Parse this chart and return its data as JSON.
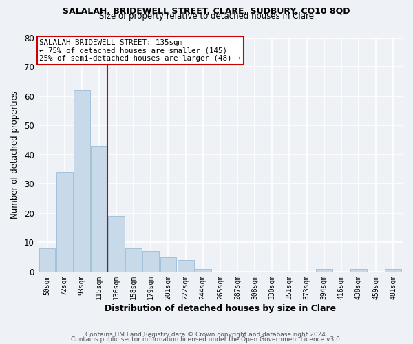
{
  "title1": "SALALAH, BRIDEWELL STREET, CLARE, SUDBURY, CO10 8QD",
  "title2": "Size of property relative to detached houses in Clare",
  "xlabel": "Distribution of detached houses by size in Clare",
  "ylabel": "Number of detached properties",
  "categories": [
    "50sqm",
    "72sqm",
    "93sqm",
    "115sqm",
    "136sqm",
    "158sqm",
    "179sqm",
    "201sqm",
    "222sqm",
    "244sqm",
    "265sqm",
    "287sqm",
    "308sqm",
    "330sqm",
    "351sqm",
    "373sqm",
    "394sqm",
    "416sqm",
    "438sqm",
    "459sqm",
    "481sqm"
  ],
  "values": [
    8,
    34,
    62,
    43,
    19,
    8,
    7,
    5,
    4,
    1,
    0,
    0,
    0,
    0,
    0,
    0,
    1,
    0,
    1,
    0,
    1
  ],
  "bar_color": "#c8daea",
  "bar_edge_color": "#9bbcd4",
  "vline_x": 3.5,
  "vline_color": "#cc0000",
  "annotation_title": "SALALAH BRIDEWELL STREET: 135sqm",
  "annotation_line1": "← 75% of detached houses are smaller (145)",
  "annotation_line2": "25% of semi-detached houses are larger (48) →",
  "annotation_box_color": "#ffffff",
  "annotation_box_edge": "#cc0000",
  "ylim": [
    0,
    80
  ],
  "yticks": [
    0,
    10,
    20,
    30,
    40,
    50,
    60,
    70,
    80
  ],
  "footer1": "Contains HM Land Registry data © Crown copyright and database right 2024.",
  "footer2": "Contains public sector information licensed under the Open Government Licence v3.0.",
  "bg_color": "#eef2f7"
}
